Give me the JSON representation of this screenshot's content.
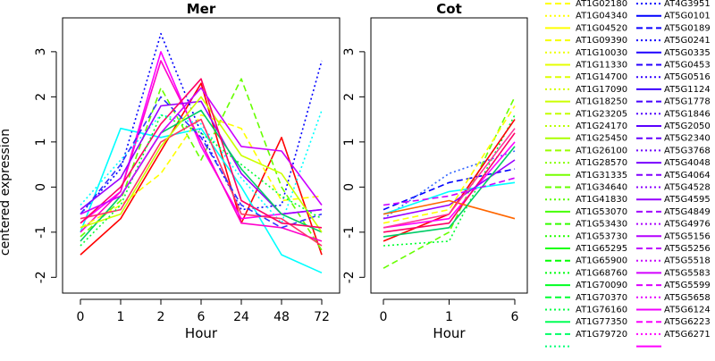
{
  "figure": {
    "ylabel": "centered expression"
  },
  "chart_data": [
    {
      "type": "line",
      "title": "Mer",
      "xlabel": "Hour",
      "ylabel": "centered expression",
      "x": [
        "0",
        "1",
        "2",
        "6",
        "24",
        "48",
        "72"
      ],
      "ylim": [
        -2,
        3
      ],
      "yticks": [
        -2,
        -1,
        0,
        1,
        2,
        3
      ],
      "grid": false,
      "note": "many gene profiles overlaid; representative series estimated",
      "series": [
        {
          "color": "#ff0000",
          "dash": "solid",
          "values": [
            -1.5,
            -0.7,
            0.8,
            2.3,
            -0.8,
            1.1,
            -1.5
          ]
        },
        {
          "color": "#0000ff",
          "dash": "dotted",
          "values": [
            -0.6,
            0.4,
            3.4,
            1.2,
            -0.5,
            -0.4,
            2.8
          ]
        },
        {
          "color": "#66ff00",
          "dash": "dashed",
          "values": [
            -1.1,
            -0.3,
            2.2,
            0.6,
            2.4,
            0.0,
            -1.4
          ]
        },
        {
          "color": "#00ffff",
          "dash": "solid",
          "values": [
            -1.0,
            1.3,
            1.1,
            1.3,
            0.0,
            -1.5,
            -1.9
          ]
        },
        {
          "color": "#ff00ff",
          "dash": "solid",
          "values": [
            -0.8,
            -0.1,
            3.0,
            0.9,
            -0.7,
            -0.6,
            -0.5
          ]
        },
        {
          "color": "#ff00cc",
          "dash": "solid",
          "values": [
            -1.0,
            -0.1,
            2.8,
            1.0,
            -0.8,
            -0.9,
            -1.2
          ]
        },
        {
          "color": "#ffff00",
          "dash": "dashed",
          "values": [
            -0.9,
            -0.4,
            0.3,
            1.6,
            1.3,
            -0.3,
            -0.2
          ]
        },
        {
          "color": "#00ffff",
          "dash": "dotted",
          "values": [
            -0.4,
            0.6,
            1.6,
            1.4,
            0.2,
            -0.8,
            1.7
          ]
        },
        {
          "color": "#9900ff",
          "dash": "solid",
          "values": [
            -0.5,
            0.2,
            1.8,
            1.9,
            0.3,
            -0.6,
            -0.5
          ]
        },
        {
          "color": "#00cc66",
          "dash": "solid",
          "values": [
            -1.2,
            -0.2,
            1.2,
            1.7,
            0.4,
            -0.6,
            -1.0
          ]
        },
        {
          "color": "#ff3366",
          "dash": "solid",
          "values": [
            -0.7,
            -0.5,
            1.0,
            1.5,
            -0.6,
            -0.7,
            -1.3
          ]
        },
        {
          "color": "#3333ff",
          "dash": "dashed",
          "values": [
            -0.6,
            0.5,
            2.0,
            1.1,
            -0.4,
            -0.9,
            -0.6
          ]
        },
        {
          "color": "#ccff00",
          "dash": "solid",
          "values": [
            -0.9,
            -0.6,
            0.9,
            2.0,
            0.7,
            0.3,
            -1.0
          ]
        },
        {
          "color": "#ff0066",
          "dash": "solid",
          "values": [
            -0.8,
            0.0,
            1.4,
            2.4,
            -0.3,
            -0.8,
            -0.9
          ]
        },
        {
          "color": "#00ff33",
          "dash": "dotted",
          "values": [
            -1.3,
            -0.4,
            1.6,
            1.2,
            0.5,
            -0.2,
            -0.7
          ]
        },
        {
          "color": "#cc00ff",
          "dash": "solid",
          "values": [
            -0.6,
            -0.2,
            1.2,
            2.2,
            0.9,
            0.8,
            -0.4
          ]
        }
      ]
    },
    {
      "type": "line",
      "title": "Cot",
      "xlabel": "Hour",
      "x": [
        "0",
        "1",
        "6"
      ],
      "ylim": [
        -2,
        3
      ],
      "yticks": [
        -2,
        -1,
        0,
        1,
        2,
        3
      ],
      "grid": false,
      "note": "many gene profiles overlaid; representative series estimated",
      "series": [
        {
          "color": "#66ff00",
          "dash": "dashed",
          "values": [
            -1.8,
            -1.0,
            2.0
          ]
        },
        {
          "color": "#00ff33",
          "dash": "dotted",
          "values": [
            -1.3,
            -1.2,
            1.6
          ]
        },
        {
          "color": "#ff0000",
          "dash": "solid",
          "values": [
            -1.2,
            -0.6,
            1.5
          ]
        },
        {
          "color": "#0000ff",
          "dash": "dashed",
          "values": [
            -0.5,
            0.1,
            0.4
          ]
        },
        {
          "color": "#3366ff",
          "dash": "dotted",
          "values": [
            -0.7,
            0.3,
            0.8
          ]
        },
        {
          "color": "#ff00ff",
          "dash": "solid",
          "values": [
            -0.9,
            -0.7,
            1.0
          ]
        },
        {
          "color": "#00ffff",
          "dash": "solid",
          "values": [
            -0.6,
            -0.1,
            0.1
          ]
        },
        {
          "color": "#ff0066",
          "dash": "solid",
          "values": [
            -1.0,
            -0.8,
            1.2
          ]
        },
        {
          "color": "#ffff00",
          "dash": "dashed",
          "values": [
            -0.8,
            -0.5,
            1.8
          ]
        },
        {
          "color": "#9900ff",
          "dash": "solid",
          "values": [
            -0.7,
            -0.4,
            0.6
          ]
        },
        {
          "color": "#ff6600",
          "dash": "solid",
          "values": [
            -0.6,
            -0.3,
            -0.7
          ]
        },
        {
          "color": "#00cc66",
          "dash": "solid",
          "values": [
            -1.1,
            -0.9,
            0.9
          ]
        },
        {
          "color": "#ff3399",
          "dash": "solid",
          "values": [
            -0.9,
            -0.6,
            1.3
          ]
        },
        {
          "color": "#cc00ff",
          "dash": "dashed",
          "values": [
            -0.4,
            -0.2,
            0.2
          ]
        }
      ]
    }
  ],
  "legend": {
    "columns": [
      {
        "entries": [
          {
            "label": "AT1G02180",
            "color": "#ffff00",
            "dash": "dashed"
          },
          {
            "label": "AT1G04340",
            "color": "#ffff00",
            "dash": "dotted"
          },
          {
            "label": "AT1G04520",
            "color": "#ffff00",
            "dash": "solid"
          },
          {
            "label": "AT1G09390",
            "color": "#f5ff00",
            "dash": "dashed"
          },
          {
            "label": "AT1G10030",
            "color": "#eeff00",
            "dash": "dotted"
          },
          {
            "label": "AT1G11330",
            "color": "#e6ff00",
            "dash": "solid"
          },
          {
            "label": "AT1G14700",
            "color": "#ddff00",
            "dash": "dashed"
          },
          {
            "label": "AT1G17090",
            "color": "#d4ff00",
            "dash": "dotted"
          },
          {
            "label": "AT1G18250",
            "color": "#ccff00",
            "dash": "solid"
          },
          {
            "label": "AT1G23205",
            "color": "#c2ff00",
            "dash": "dashed"
          },
          {
            "label": "AT1G24170",
            "color": "#b8ff00",
            "dash": "dotted"
          },
          {
            "label": "AT1G25450",
            "color": "#aaff00",
            "dash": "solid"
          },
          {
            "label": "AT1G26100",
            "color": "#99ff00",
            "dash": "dashed"
          },
          {
            "label": "AT1G28570",
            "color": "#88ff00",
            "dash": "dotted"
          },
          {
            "label": "AT1G31335",
            "color": "#77ff00",
            "dash": "solid"
          },
          {
            "label": "AT1G34640",
            "color": "#66ff00",
            "dash": "dashed"
          },
          {
            "label": "AT1G41830",
            "color": "#55ff00",
            "dash": "dotted"
          },
          {
            "label": "AT1G53070",
            "color": "#44ff00",
            "dash": "solid"
          },
          {
            "label": "AT1G53430",
            "color": "#33ff00",
            "dash": "dashed"
          },
          {
            "label": "AT1G53730",
            "color": "#22ff00",
            "dash": "dotted"
          },
          {
            "label": "AT1G65295",
            "color": "#11ff00",
            "dash": "solid"
          },
          {
            "label": "AT1G65900",
            "color": "#00ff00",
            "dash": "dashed"
          },
          {
            "label": "AT1G68760",
            "color": "#00ff11",
            "dash": "dotted"
          },
          {
            "label": "AT1G70090",
            "color": "#00ff22",
            "dash": "solid"
          },
          {
            "label": "AT1G70370",
            "color": "#00ff33",
            "dash": "dashed"
          },
          {
            "label": "AT1G76160",
            "color": "#00ff44",
            "dash": "dotted"
          },
          {
            "label": "AT1G77350",
            "color": "#00ff55",
            "dash": "solid"
          },
          {
            "label": "AT1G79720",
            "color": "#00ff66",
            "dash": "dashed"
          },
          {
            "label": "",
            "color": "#00ff77",
            "dash": "dotted"
          }
        ]
      },
      {
        "entries": [
          {
            "label": "AT4G3951",
            "color": "#0000ff",
            "dash": "dotted"
          },
          {
            "label": "AT5G0101",
            "color": "#0000ff",
            "dash": "solid"
          },
          {
            "label": "AT5G0189",
            "color": "#0a00ff",
            "dash": "dashed"
          },
          {
            "label": "AT5G0241",
            "color": "#1400ff",
            "dash": "dotted"
          },
          {
            "label": "AT5G0335",
            "color": "#1e00ff",
            "dash": "solid"
          },
          {
            "label": "AT5G0453",
            "color": "#2800ff",
            "dash": "dashed"
          },
          {
            "label": "AT5G0516",
            "color": "#3200ff",
            "dash": "dotted"
          },
          {
            "label": "AT5G1124",
            "color": "#3c00ff",
            "dash": "solid"
          },
          {
            "label": "AT5G1778",
            "color": "#4600ff",
            "dash": "dashed"
          },
          {
            "label": "AT5G1846",
            "color": "#5000ff",
            "dash": "dotted"
          },
          {
            "label": "AT5G2050",
            "color": "#5a00ff",
            "dash": "solid"
          },
          {
            "label": "AT5G2340",
            "color": "#6400ff",
            "dash": "dashed"
          },
          {
            "label": "AT5G3768",
            "color": "#6e00ff",
            "dash": "dotted"
          },
          {
            "label": "AT5G4048",
            "color": "#7800ff",
            "dash": "solid"
          },
          {
            "label": "AT5G4064",
            "color": "#8200ff",
            "dash": "dashed"
          },
          {
            "label": "AT5G4528",
            "color": "#8c00ff",
            "dash": "dotted"
          },
          {
            "label": "AT5G4595",
            "color": "#9600ff",
            "dash": "solid"
          },
          {
            "label": "AT5G4849",
            "color": "#a000ff",
            "dash": "dashed"
          },
          {
            "label": "AT5G4976",
            "color": "#aa00ff",
            "dash": "dotted"
          },
          {
            "label": "AT5G5156",
            "color": "#b400ff",
            "dash": "solid"
          },
          {
            "label": "AT5G5256",
            "color": "#be00ff",
            "dash": "dashed"
          },
          {
            "label": "AT5G5518",
            "color": "#c800ff",
            "dash": "dotted"
          },
          {
            "label": "AT5G5583",
            "color": "#d200ff",
            "dash": "solid"
          },
          {
            "label": "AT5G5599",
            "color": "#dc00ff",
            "dash": "dashed"
          },
          {
            "label": "AT5G5658",
            "color": "#e600ff",
            "dash": "dotted"
          },
          {
            "label": "AT5G6124",
            "color": "#f000ff",
            "dash": "solid"
          },
          {
            "label": "AT5G6223",
            "color": "#fa00ff",
            "dash": "dashed"
          },
          {
            "label": "AT5G6271",
            "color": "#ff00ff",
            "dash": "dotted"
          },
          {
            "label": "",
            "color": "#ff00ff",
            "dash": "solid"
          }
        ]
      }
    ]
  }
}
